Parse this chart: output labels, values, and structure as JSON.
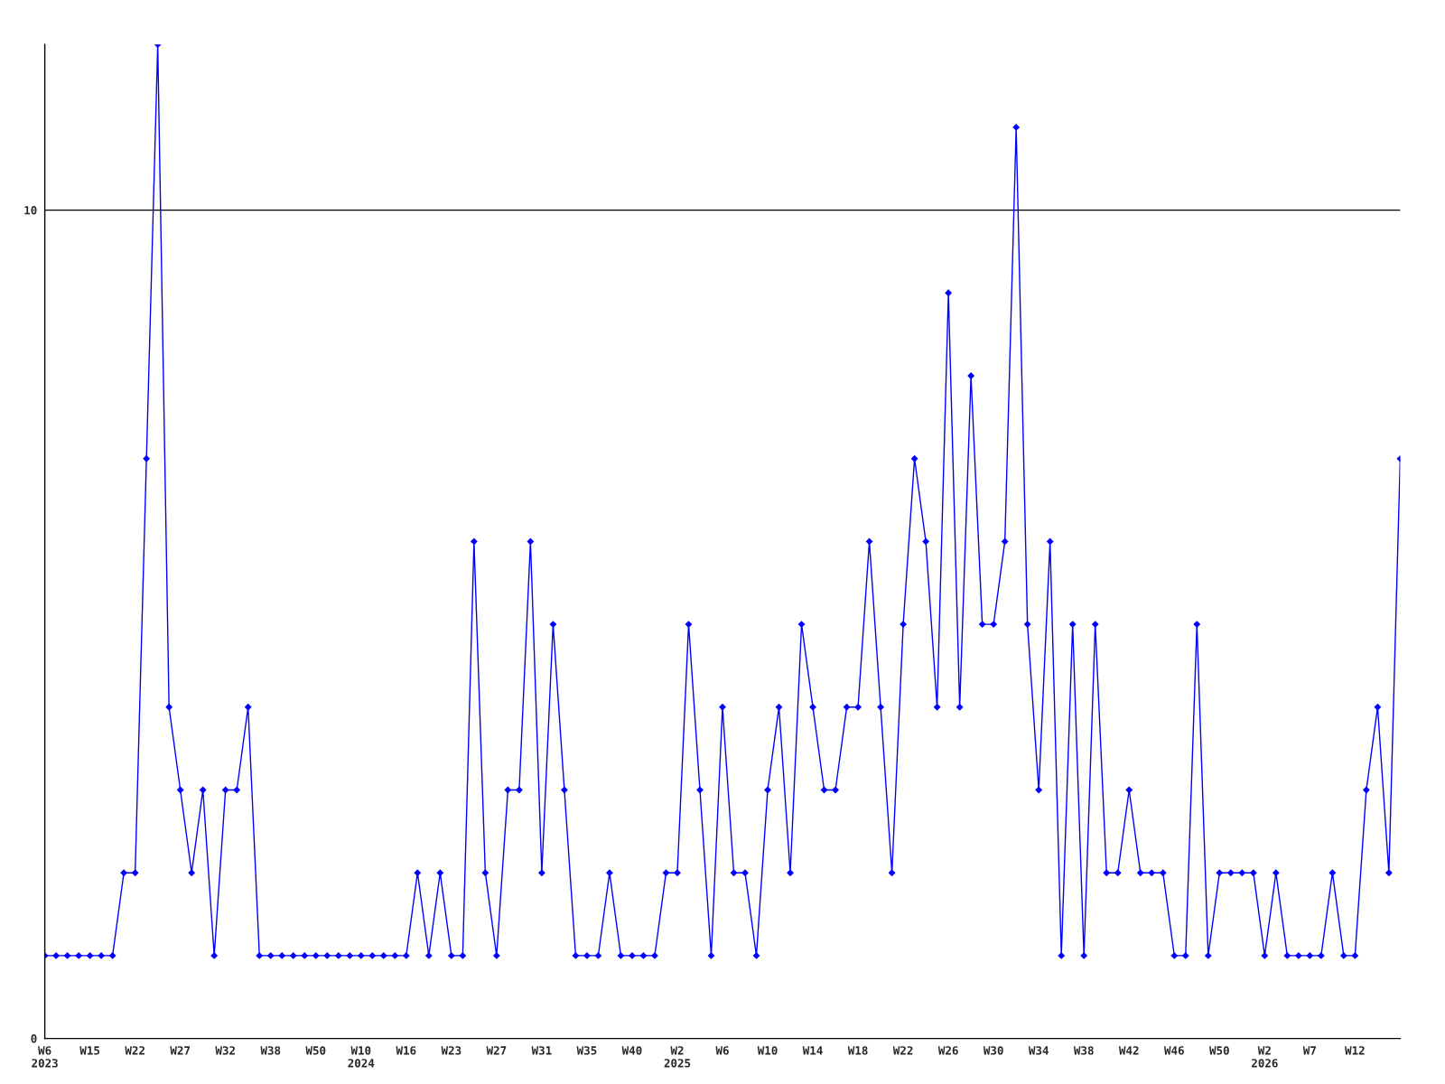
{
  "chart_data": {
    "type": "line",
    "categories": [
      "W6\n2023",
      null,
      null,
      null,
      "W15",
      null,
      null,
      null,
      "W22",
      null,
      null,
      null,
      "W27",
      null,
      null,
      null,
      "W32",
      null,
      null,
      null,
      "W38",
      null,
      null,
      null,
      "W50",
      null,
      null,
      null,
      "W10\n2024",
      null,
      null,
      null,
      "W16",
      null,
      null,
      null,
      "W23",
      null,
      null,
      null,
      "W27",
      null,
      null,
      null,
      "W31",
      null,
      null,
      null,
      "W35",
      null,
      null,
      null,
      "W40",
      null,
      null,
      null,
      "W2\n2025",
      null,
      null,
      null,
      "W6",
      null,
      null,
      null,
      "W10",
      null,
      null,
      null,
      "W14",
      null,
      null,
      null,
      "W18",
      null,
      null,
      null,
      "W22",
      null,
      null,
      null,
      "W26",
      null,
      null,
      null,
      "W30",
      null,
      null,
      null,
      "W34",
      null,
      null,
      null,
      "W38",
      null,
      null,
      null,
      "W42",
      null,
      null,
      null,
      "W46",
      null,
      null,
      null,
      "W50",
      null,
      null,
      null,
      "W2\n2026",
      null,
      null,
      null,
      "W7",
      null,
      null,
      null,
      "W12",
      null,
      null,
      null,
      null
    ],
    "series": [
      {
        "color": "#0000ff",
        "values": [
          1,
          1,
          1,
          1,
          1,
          1,
          1,
          2,
          2,
          7,
          12,
          4,
          3,
          2,
          3,
          1,
          3,
          3,
          4,
          1,
          1,
          1,
          1,
          1,
          1,
          1,
          1,
          1,
          1,
          1,
          1,
          1,
          1,
          2,
          1,
          2,
          1,
          1,
          6,
          2,
          1,
          3,
          3,
          6,
          2,
          5,
          3,
          1,
          1,
          1,
          2,
          1,
          1,
          1,
          1,
          2,
          2,
          5,
          3,
          1,
          4,
          2,
          2,
          1,
          3,
          4,
          2,
          5,
          4,
          3,
          3,
          4,
          4,
          6,
          4,
          2,
          5,
          7,
          6,
          4,
          9,
          4,
          8,
          5,
          5,
          6,
          11,
          5,
          3,
          6,
          1,
          5,
          1,
          5,
          2,
          2,
          3,
          2,
          2,
          2,
          1,
          1,
          5,
          1,
          2,
          2,
          2,
          2,
          1,
          2,
          1,
          1,
          1,
          1,
          2,
          1,
          1,
          3,
          4,
          2,
          7
        ]
      }
    ],
    "ylim": [
      0,
      12
    ],
    "yticks": [
      0,
      10
    ],
    "grid": "y",
    "marker": "diamond",
    "line_style": "solid"
  }
}
